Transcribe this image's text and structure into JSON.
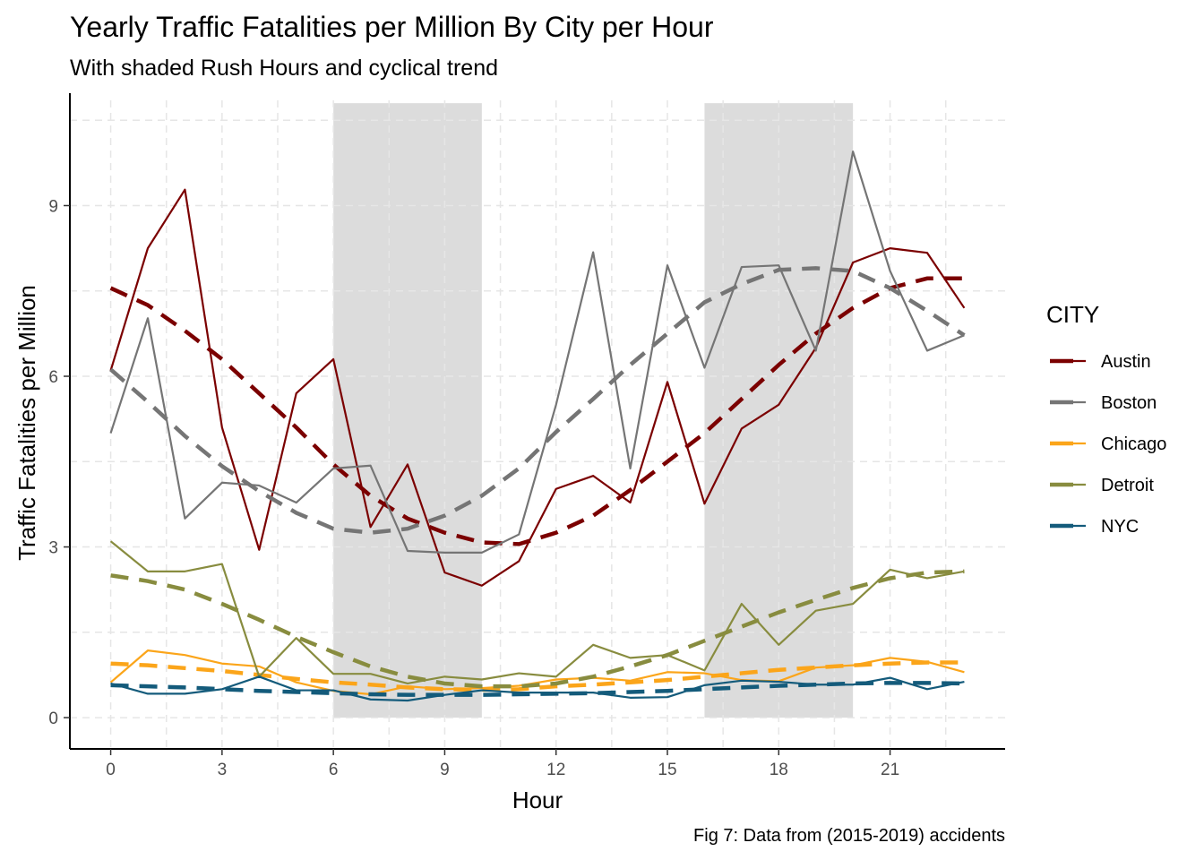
{
  "chart_data": {
    "type": "line",
    "title": "Yearly Traffic Fatalities per Million By City per Hour",
    "subtitle": "With shaded Rush Hours and cyclical trend",
    "xlabel": "Hour",
    "ylabel": "Traffic Fatalities per Million",
    "caption": "Fig 7: Data from (2015-2019) accidents",
    "x": [
      0,
      1,
      2,
      3,
      4,
      5,
      6,
      7,
      8,
      9,
      10,
      11,
      12,
      13,
      14,
      15,
      16,
      17,
      18,
      19,
      20,
      21,
      22,
      23
    ],
    "xticks": [
      0,
      3,
      6,
      9,
      12,
      15,
      18,
      21
    ],
    "yticks": [
      0,
      3,
      6,
      9
    ],
    "xlim": [
      -1.1,
      24.1
    ],
    "ylim": [
      -0.55,
      10.85
    ],
    "grid": true,
    "rush_hours": [
      [
        6,
        10
      ],
      [
        16,
        20
      ]
    ],
    "legend": {
      "title": "CITY",
      "position": "right"
    },
    "series": [
      {
        "name": "Austin",
        "color": "#7b0000",
        "values": [
          6.1,
          8.25,
          9.28,
          5.1,
          2.95,
          5.7,
          6.3,
          3.35,
          4.45,
          2.55,
          2.32,
          2.75,
          4.02,
          4.25,
          3.78,
          5.9,
          3.76,
          5.08,
          5.5,
          6.5,
          8.0,
          8.25,
          8.17,
          7.2
        ],
        "trend": [
          7.55,
          7.25,
          6.8,
          6.3,
          5.7,
          5.1,
          4.45,
          3.9,
          3.5,
          3.25,
          3.08,
          3.05,
          3.25,
          3.55,
          4.0,
          4.5,
          5.0,
          5.6,
          6.2,
          6.75,
          7.2,
          7.55,
          7.72,
          7.72
        ]
      },
      {
        "name": "Boston",
        "color": "#757575",
        "values": [
          5.0,
          7.02,
          3.5,
          4.13,
          4.08,
          3.78,
          4.38,
          4.43,
          2.93,
          2.9,
          2.9,
          3.22,
          5.5,
          8.18,
          4.38,
          7.95,
          6.15,
          7.92,
          7.95,
          6.45,
          9.95,
          7.85,
          6.45,
          6.72
        ],
        "trend": [
          6.12,
          5.55,
          4.95,
          4.42,
          3.98,
          3.6,
          3.32,
          3.25,
          3.32,
          3.55,
          3.9,
          4.38,
          5.02,
          5.6,
          6.2,
          6.75,
          7.3,
          7.62,
          7.87,
          7.9,
          7.85,
          7.55,
          7.15,
          6.72
        ]
      },
      {
        "name": "Chicago",
        "color": "#fba51a",
        "values": [
          0.62,
          1.18,
          1.1,
          0.95,
          0.9,
          0.62,
          0.47,
          0.41,
          0.55,
          0.5,
          0.52,
          0.56,
          0.67,
          0.7,
          0.65,
          0.8,
          0.78,
          0.66,
          0.64,
          0.88,
          0.92,
          1.05,
          0.98,
          0.8
        ],
        "trend": [
          0.95,
          0.92,
          0.87,
          0.82,
          0.75,
          0.68,
          0.62,
          0.58,
          0.53,
          0.5,
          0.49,
          0.5,
          0.55,
          0.58,
          0.62,
          0.66,
          0.72,
          0.78,
          0.84,
          0.88,
          0.92,
          0.95,
          0.97,
          0.97
        ]
      },
      {
        "name": "Detroit",
        "color": "#888c3f",
        "values": [
          3.1,
          2.57,
          2.57,
          2.7,
          0.72,
          1.4,
          0.77,
          0.77,
          0.6,
          0.72,
          0.67,
          0.78,
          0.72,
          1.28,
          1.05,
          1.1,
          0.83,
          2.0,
          1.28,
          1.88,
          2.0,
          2.6,
          2.45,
          2.57
        ],
        "trend": [
          2.5,
          2.4,
          2.25,
          2.0,
          1.72,
          1.42,
          1.15,
          0.9,
          0.72,
          0.6,
          0.55,
          0.55,
          0.6,
          0.72,
          0.9,
          1.1,
          1.35,
          1.6,
          1.85,
          2.07,
          2.28,
          2.45,
          2.55,
          2.57
        ]
      },
      {
        "name": "NYC",
        "color": "#145b7b",
        "values": [
          0.6,
          0.42,
          0.42,
          0.5,
          0.72,
          0.48,
          0.48,
          0.32,
          0.3,
          0.4,
          0.48,
          0.44,
          0.44,
          0.44,
          0.35,
          0.36,
          0.57,
          0.65,
          0.63,
          0.58,
          0.58,
          0.7,
          0.5,
          0.63
        ],
        "trend": [
          0.57,
          0.55,
          0.53,
          0.5,
          0.47,
          0.45,
          0.43,
          0.41,
          0.4,
          0.4,
          0.4,
          0.41,
          0.42,
          0.43,
          0.45,
          0.47,
          0.5,
          0.53,
          0.56,
          0.58,
          0.6,
          0.61,
          0.61,
          0.6
        ]
      }
    ]
  }
}
